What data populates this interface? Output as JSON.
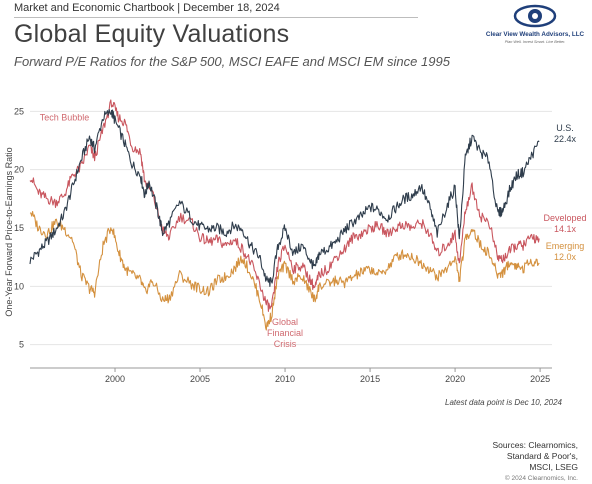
{
  "header": {
    "chartbook": "Market and Economic Chartbook | December 18, 2024",
    "title": "Global Equity Valuations",
    "subtitle": "Forward P/E Ratios for the S&P 500, MSCI EAFE and MSCI EM since 1995"
  },
  "logo": {
    "name": "Clear View Wealth Advisors, LLC",
    "tagline": "Plan Well. Invest Smart. Live Better."
  },
  "colors": {
    "us": "#2f3d4c",
    "developed": "#c9575f",
    "emerging": "#d4913f",
    "annotation": "#d06a70",
    "grid": "#e5e5e5"
  },
  "chart_data": {
    "type": "line",
    "title": "Global Equity Valuations",
    "ylabel": "One-Year Forward Price-to-Earnings Ratio",
    "xlabel": "",
    "xlim": [
      1995,
      2025.7
    ],
    "ylim": [
      3,
      27
    ],
    "xticks": [
      2000,
      2005,
      2010,
      2015,
      2020,
      2025
    ],
    "yticks": [
      5,
      10,
      15,
      20,
      25
    ],
    "grid": "horizontal",
    "annotations": [
      {
        "text": "Tech Bubble",
        "x": 1998.5,
        "y": 24.2
      },
      {
        "text": "Global Financial Crisis",
        "x": 2009.0,
        "y": 7.0
      }
    ],
    "series": [
      {
        "name": "U.S.",
        "last_label": "22.4x",
        "x": [
          1995.0,
          1995.5,
          1996.0,
          1996.5,
          1997.0,
          1997.5,
          1998.0,
          1998.5,
          1998.8,
          1999.3,
          1999.8,
          2000.0,
          2000.5,
          2001.0,
          2001.5,
          2001.75,
          2002.0,
          2002.5,
          2002.8,
          2003.2,
          2003.8,
          2004.5,
          2005.0,
          2005.5,
          2006.0,
          2006.5,
          2007.0,
          2007.5,
          2008.0,
          2008.5,
          2008.9,
          2009.2,
          2009.6,
          2010.0,
          2010.5,
          2011.0,
          2011.5,
          2011.75,
          2012.0,
          2012.5,
          2013.0,
          2013.5,
          2014.0,
          2014.5,
          2015.0,
          2015.5,
          2016.0,
          2016.5,
          2017.0,
          2017.5,
          2018.0,
          2018.5,
          2018.95,
          2019.5,
          2020.0,
          2020.25,
          2020.6,
          2021.0,
          2021.5,
          2022.0,
          2022.5,
          2022.8,
          2023.2,
          2023.6,
          2024.0,
          2024.5,
          2024.95
        ],
        "y": [
          12.2,
          13.0,
          13.8,
          14.8,
          16.2,
          18.5,
          20.8,
          22.8,
          21.8,
          24.5,
          25.0,
          24.2,
          22.5,
          20.5,
          19.5,
          17.8,
          19.0,
          16.5,
          14.6,
          15.5,
          17.2,
          15.8,
          15.1,
          14.9,
          15.0,
          14.6,
          15.2,
          14.9,
          13.4,
          12.5,
          10.5,
          10.3,
          13.5,
          15.0,
          12.8,
          13.5,
          12.2,
          11.5,
          12.8,
          13.2,
          13.8,
          14.8,
          15.5,
          16.0,
          16.8,
          16.5,
          15.8,
          16.7,
          17.5,
          17.8,
          18.6,
          16.8,
          14.5,
          16.8,
          18.5,
          14.0,
          21.0,
          22.8,
          21.5,
          20.8,
          16.2,
          16.5,
          18.2,
          19.5,
          19.8,
          21.2,
          22.4
        ]
      },
      {
        "name": "Developed",
        "last_label": "14.1x",
        "x": [
          1995.0,
          1995.5,
          1996.0,
          1996.5,
          1997.0,
          1997.5,
          1998.0,
          1998.5,
          1998.8,
          1999.3,
          1999.8,
          2000.2,
          2000.6,
          2001.0,
          2001.5,
          2001.75,
          2002.2,
          2002.8,
          2003.2,
          2003.8,
          2004.5,
          2005.0,
          2005.5,
          2006.0,
          2006.5,
          2007.0,
          2007.5,
          2008.0,
          2008.5,
          2008.9,
          2009.2,
          2009.6,
          2010.0,
          2010.5,
          2011.0,
          2011.5,
          2011.75,
          2012.0,
          2012.5,
          2013.0,
          2013.5,
          2014.0,
          2014.5,
          2015.0,
          2015.5,
          2016.0,
          2016.5,
          2017.0,
          2017.5,
          2018.0,
          2018.5,
          2018.95,
          2019.5,
          2020.0,
          2020.25,
          2020.6,
          2021.0,
          2021.5,
          2022.0,
          2022.5,
          2022.8,
          2023.2,
          2023.6,
          2024.0,
          2024.5,
          2024.95
        ],
        "y": [
          19.5,
          18.0,
          17.5,
          17.2,
          17.8,
          19.5,
          20.2,
          22.0,
          21.0,
          23.5,
          25.8,
          24.5,
          24.0,
          22.0,
          21.5,
          19.0,
          18.0,
          14.8,
          14.2,
          16.0,
          15.5,
          14.2,
          13.8,
          14.0,
          13.5,
          14.0,
          13.2,
          12.0,
          10.2,
          8.5,
          8.0,
          12.0,
          13.5,
          11.5,
          11.8,
          10.5,
          9.8,
          11.0,
          11.5,
          12.5,
          13.2,
          14.2,
          14.5,
          15.0,
          15.2,
          14.5,
          15.0,
          15.3,
          15.0,
          15.5,
          14.5,
          12.8,
          13.5,
          14.5,
          11.8,
          16.5,
          18.5,
          16.0,
          15.5,
          12.5,
          12.3,
          13.0,
          13.5,
          13.5,
          14.2,
          14.1
        ]
      },
      {
        "name": "Emerging",
        "last_label": "12.0x",
        "x": [
          1995.0,
          1995.5,
          1996.0,
          1996.5,
          1997.0,
          1997.5,
          1998.0,
          1998.5,
          1998.8,
          1999.3,
          1999.8,
          2000.2,
          2000.6,
          2001.0,
          2001.5,
          2001.75,
          2002.2,
          2002.8,
          2003.2,
          2003.8,
          2004.5,
          2005.0,
          2005.5,
          2006.0,
          2006.5,
          2007.0,
          2007.5,
          2008.0,
          2008.5,
          2008.9,
          2009.2,
          2009.6,
          2010.0,
          2010.5,
          2011.0,
          2011.5,
          2011.75,
          2012.0,
          2012.5,
          2013.0,
          2013.5,
          2014.0,
          2014.5,
          2015.0,
          2015.5,
          2016.0,
          2016.5,
          2017.0,
          2017.5,
          2018.0,
          2018.5,
          2018.95,
          2019.5,
          2020.0,
          2020.25,
          2020.6,
          2021.0,
          2021.5,
          2022.0,
          2022.5,
          2022.8,
          2023.2,
          2023.6,
          2024.0,
          2024.5,
          2024.95
        ],
        "y": [
          16.5,
          15.0,
          14.5,
          15.5,
          15.0,
          14.0,
          11.0,
          9.8,
          9.5,
          13.5,
          15.2,
          13.0,
          11.5,
          11.0,
          10.5,
          9.5,
          10.5,
          8.8,
          9.0,
          11.0,
          10.2,
          9.8,
          9.5,
          10.5,
          10.8,
          11.5,
          12.5,
          11.0,
          9.0,
          6.5,
          7.5,
          11.0,
          11.8,
          10.5,
          10.8,
          9.5,
          8.8,
          10.0,
          10.2,
          10.5,
          10.3,
          10.8,
          11.2,
          11.5,
          11.0,
          11.5,
          12.5,
          12.8,
          12.5,
          12.0,
          11.5,
          10.8,
          11.5,
          12.5,
          10.5,
          14.0,
          15.0,
          13.5,
          12.8,
          11.0,
          11.2,
          12.0,
          11.8,
          11.5,
          12.2,
          12.0
        ]
      }
    ]
  },
  "footer": {
    "note": "Latest data point is Dec 10, 2024",
    "sources_lines": [
      "Sources: Clearnomics,",
      "Standard & Poor's,",
      "MSCI, LSEG"
    ],
    "copyright": "© 2024 Clearnomics, Inc."
  }
}
